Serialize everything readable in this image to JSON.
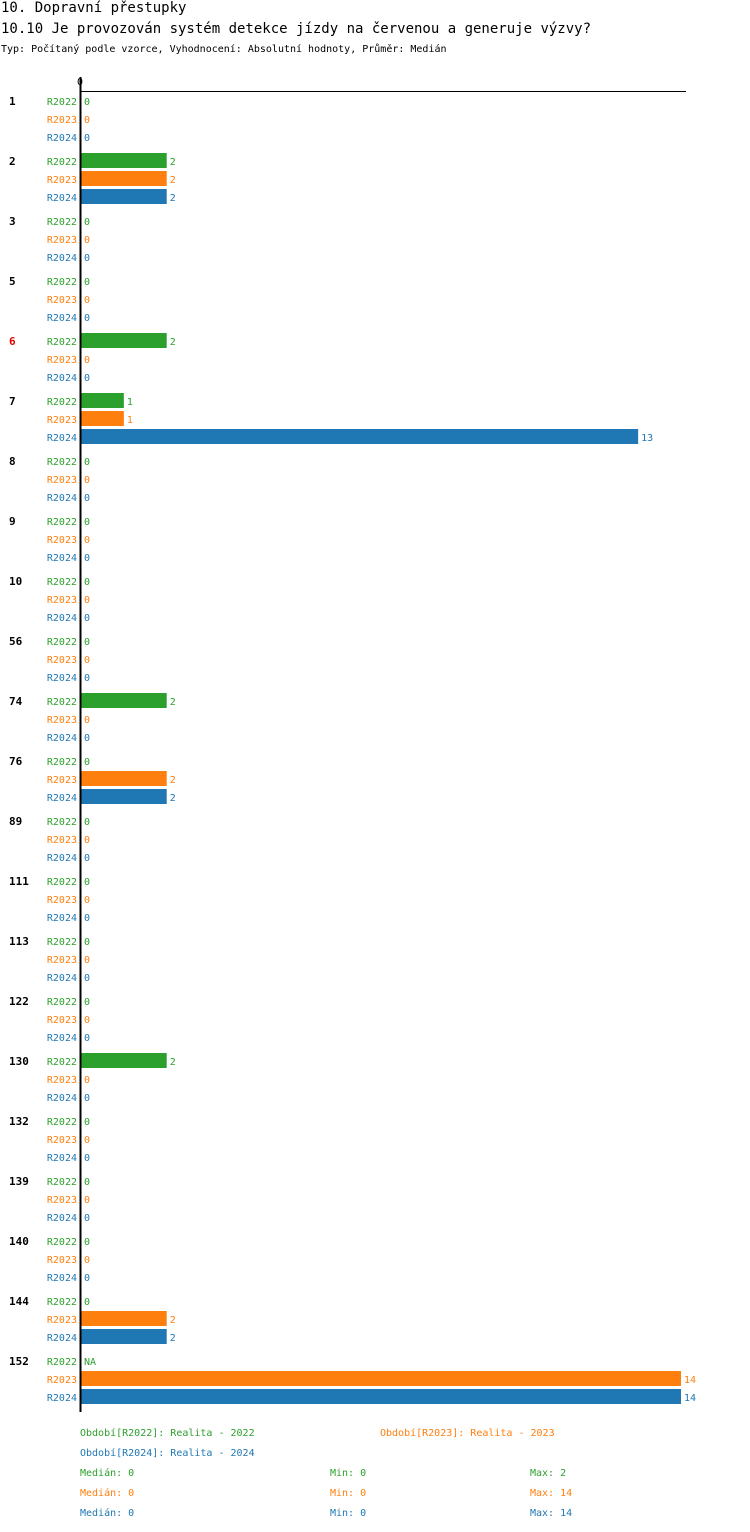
{
  "header": {
    "title": "10. Dopravní přestupky",
    "question": "10.10 Je provozován systém detekce jízdy na červenou a generuje výzvy?",
    "info": "Typ: Počítaný podle vzorce, Vyhodnocení: Absolutní hodnoty, Průměr: Medián"
  },
  "colors": {
    "R2022": "#2ca02c",
    "R2023": "#ff7f0e",
    "R2024": "#1f77b4",
    "highlight": "#e00000"
  },
  "chart_data": {
    "type": "bar",
    "orientation": "horizontal",
    "axis_zero_label": "0",
    "xlim": [
      0,
      14
    ],
    "categories": [
      "1",
      "2",
      "3",
      "5",
      "6",
      "7",
      "8",
      "9",
      "10",
      "56",
      "74",
      "76",
      "89",
      "111",
      "113",
      "122",
      "130",
      "132",
      "139",
      "140",
      "144",
      "152"
    ],
    "highlighted_category": "6",
    "series": [
      {
        "name": "R2022",
        "values": [
          0,
          2,
          0,
          0,
          2,
          1,
          0,
          0,
          0,
          0,
          2,
          0,
          0,
          0,
          0,
          0,
          2,
          0,
          0,
          0,
          0,
          null
        ],
        "labels": [
          "0",
          "2",
          "0",
          "0",
          "2",
          "1",
          "0",
          "0",
          "0",
          "0",
          "2",
          "0",
          "0",
          "0",
          "0",
          "0",
          "2",
          "0",
          "0",
          "0",
          "0",
          "NA"
        ]
      },
      {
        "name": "R2023",
        "values": [
          0,
          2,
          0,
          0,
          0,
          1,
          0,
          0,
          0,
          0,
          0,
          2,
          0,
          0,
          0,
          0,
          0,
          0,
          0,
          0,
          2,
          14
        ],
        "labels": [
          "0",
          "2",
          "0",
          "0",
          "0",
          "1",
          "0",
          "0",
          "0",
          "0",
          "0",
          "2",
          "0",
          "0",
          "0",
          "0",
          "0",
          "0",
          "0",
          "0",
          "2",
          "14"
        ]
      },
      {
        "name": "R2024",
        "values": [
          0,
          2,
          0,
          0,
          0,
          13,
          0,
          0,
          0,
          0,
          0,
          2,
          0,
          0,
          0,
          0,
          0,
          0,
          0,
          0,
          2,
          14
        ],
        "labels": [
          "0",
          "2",
          "0",
          "0",
          "0",
          "13",
          "0",
          "0",
          "0",
          "0",
          "0",
          "2",
          "0",
          "0",
          "0",
          "0",
          "0",
          "0",
          "0",
          "0",
          "2",
          "14"
        ]
      }
    ]
  },
  "legend": {
    "r2022": "Období[R2022]: Realita - 2022",
    "r2023": "Období[R2023]: Realita - 2023",
    "r2024": "Období[R2024]: Realita - 2024"
  },
  "stats": [
    {
      "series": "R2022",
      "median": "Medián: 0",
      "min": "Min: 0",
      "max": "Max: 2"
    },
    {
      "series": "R2023",
      "median": "Medián: 0",
      "min": "Min: 0",
      "max": "Max: 14"
    },
    {
      "series": "R2024",
      "median": "Medián: 0",
      "min": "Min: 0",
      "max": "Max: 14"
    }
  ]
}
